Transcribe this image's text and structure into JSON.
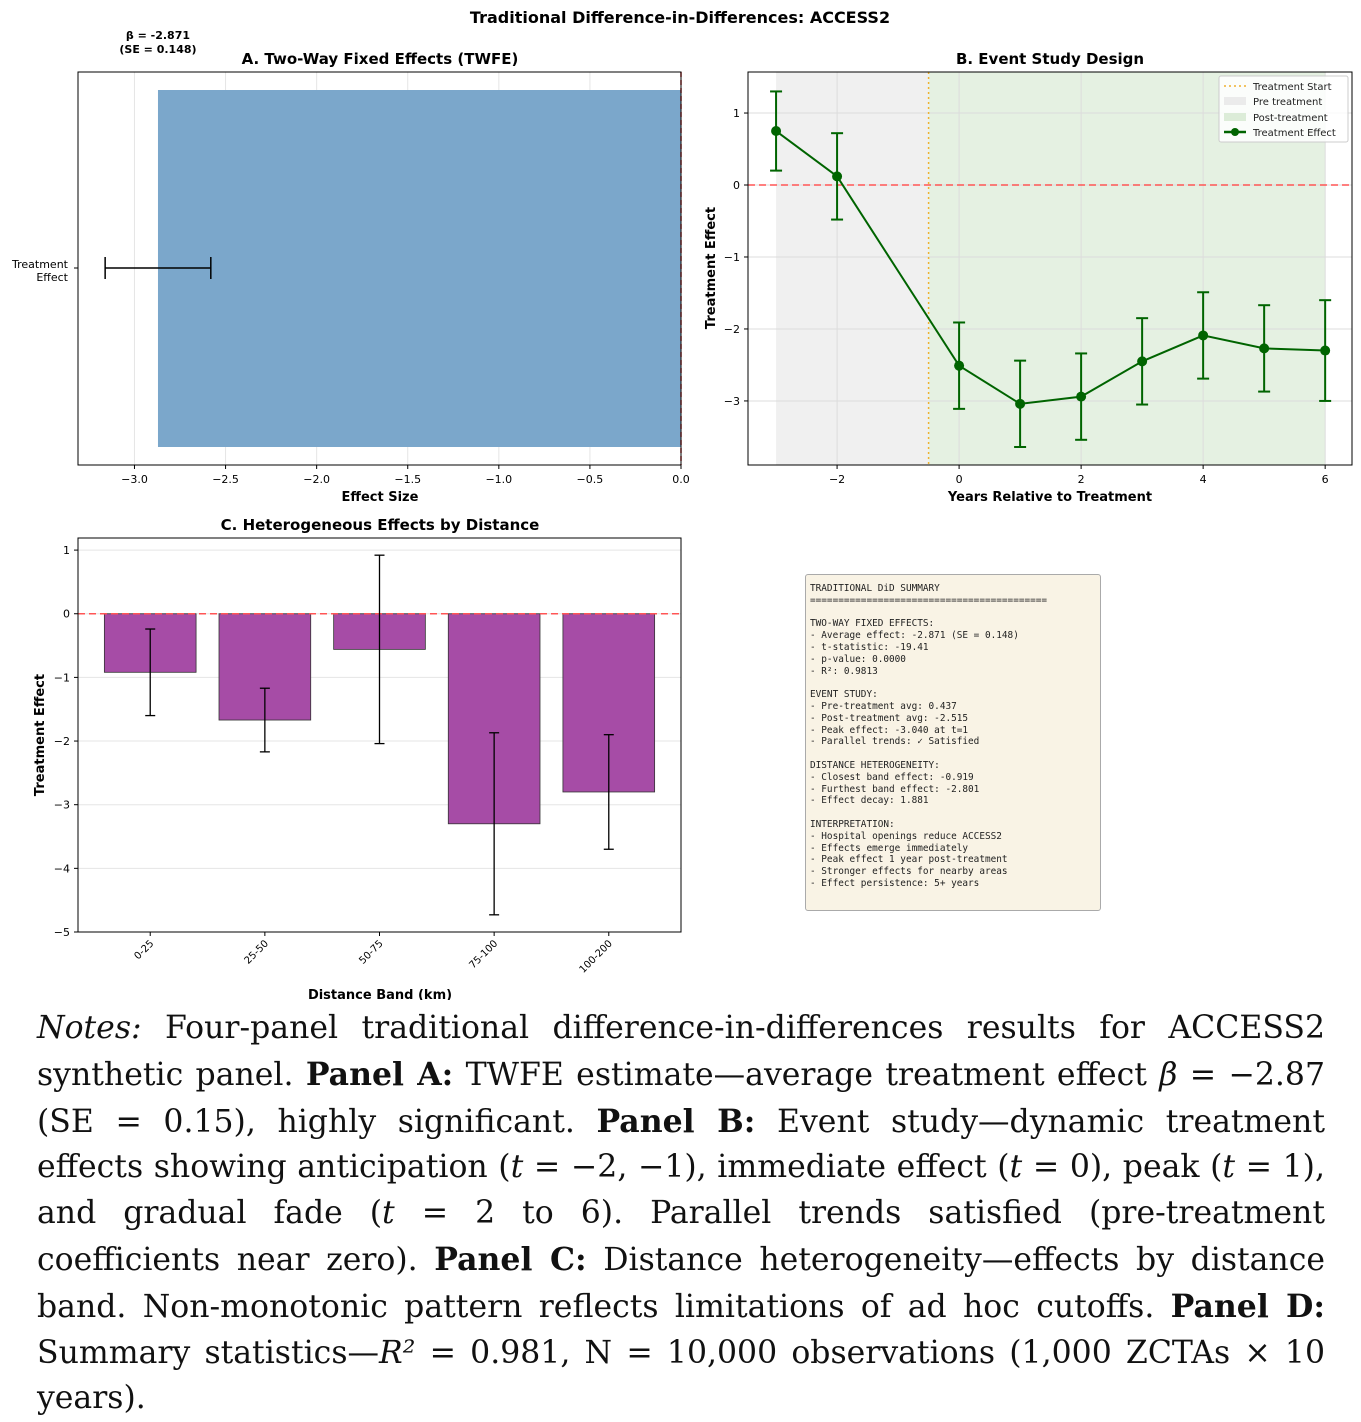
{
  "figure": {
    "suptitle": "Traditional Difference-in-Differences: ACCESS2"
  },
  "chart_data": [
    {
      "panel": "A",
      "type": "bar",
      "orientation": "horizontal",
      "title": "A. Two-Way Fixed Effects (TWFE)",
      "xlabel": "Effect Size",
      "categories": [
        "Treatment\nEffect"
      ],
      "values": [
        -2.871
      ],
      "errors": [
        0.29
      ],
      "xlim": [
        -3.31,
        0.0
      ],
      "xticks": [
        "−3.0",
        "−2.5",
        "−2.0",
        "−1.5",
        "−1.0",
        "−0.5",
        "0.0"
      ],
      "xtick_values": [
        -3,
        -2.5,
        -2,
        -1.5,
        -1,
        -0.5,
        0
      ],
      "annotation": [
        "β = -2.871",
        "(SE = 0.148)"
      ],
      "reference_line": 0,
      "bar_color": "#7ba7cb",
      "grid": true
    },
    {
      "panel": "B",
      "type": "line",
      "title": "B. Event Study Design",
      "xlabel": "Years Relative to Treatment",
      "ylabel": "Treatment Effect",
      "x": [
        -3,
        -2,
        0,
        1,
        2,
        3,
        4,
        5,
        6
      ],
      "y": [
        0.75,
        0.12,
        -2.51,
        -3.04,
        -2.94,
        -2.45,
        -2.09,
        -2.27,
        -2.3
      ],
      "ci_low": [
        0.2,
        -0.48,
        -3.11,
        -3.64,
        -3.54,
        -3.05,
        -2.69,
        -2.87,
        -3.0
      ],
      "ci_high": [
        1.3,
        0.72,
        -1.91,
        -2.44,
        -2.34,
        -1.85,
        -1.49,
        -1.67,
        -1.6
      ],
      "xlim": [
        -3.46,
        6.44
      ],
      "ylim": [
        -3.89,
        1.57
      ],
      "xticks": [
        -2,
        0,
        2,
        4,
        6
      ],
      "yticks": [
        1,
        0,
        -1,
        -2,
        -3
      ],
      "treatment_start": -0.5,
      "pre_region": [
        -3,
        -0.5
      ],
      "post_region": [
        -0.5,
        6
      ],
      "reference_line": 0,
      "legend": [
        "Treatment Start",
        "Pre treatment",
        "Post-treatment",
        "Treatment Effect"
      ],
      "legend_placement": "upper right",
      "line_color": "#006400",
      "grid": true
    },
    {
      "panel": "C",
      "type": "bar",
      "title": "C. Heterogeneous Effects by Distance",
      "xlabel": "Distance Band (km)",
      "ylabel": "Treatment Effect",
      "categories": [
        "0-25",
        "25-50",
        "50-75",
        "75-100",
        "100-200"
      ],
      "values": [
        -0.92,
        -1.67,
        -0.56,
        -3.3,
        -2.8
      ],
      "errors": [
        0.68,
        0.5,
        1.48,
        1.43,
        0.9
      ],
      "ylim": [
        -5,
        1.19
      ],
      "yticks": [
        1,
        0,
        -1,
        -2,
        -3,
        -4,
        -5
      ],
      "reference_line": 0,
      "bar_color": "#a64ca6",
      "grid": true
    }
  ],
  "summary": {
    "lines": [
      "TRADITIONAL DiD SUMMARY",
      "==========================================",
      "",
      "TWO-WAY FIXED EFFECTS:",
      "- Average effect: -2.871 (SE = 0.148)",
      "- t-statistic: -19.41",
      "- p-value: 0.0000",
      "- R²: 0.9813",
      "",
      "EVENT STUDY:",
      "- Pre-treatment avg: 0.437",
      "- Post-treatment avg: -2.515",
      "- Peak effect: -3.040 at t=1",
      "- Parallel trends: ✓ Satisfied",
      "",
      "DISTANCE HETEROGENEITY:",
      "- Closest band effect: -0.919",
      "- Furthest band effect: -2.801",
      "- Effect decay: 1.881",
      "",
      "INTERPRETATION:",
      "- Hospital openings reduce ACCESS2",
      "- Effects emerge immediately",
      "- Peak effect 1 year post-treatment",
      "- Stronger effects for nearby areas",
      "- Effect persistence: 5+ years"
    ]
  },
  "notes": [
    {
      "t": "Notes:",
      "s": "i"
    },
    {
      "t": " Four-panel traditional difference-in-differences results for ACCESS2 synthetic panel. "
    },
    {
      "t": "Panel A:",
      "s": "b"
    },
    {
      "t": " TWFE estimate—average treatment effect "
    },
    {
      "t": "β",
      "s": "i"
    },
    {
      "t": " = −2.87 (SE = 0.15), highly significant. "
    },
    {
      "t": "Panel B:",
      "s": "b"
    },
    {
      "t": " Event study—dynamic treatment effects showing anticipation ("
    },
    {
      "t": "t",
      "s": "i"
    },
    {
      "t": " = −2, −1), immediate effect ("
    },
    {
      "t": "t",
      "s": "i"
    },
    {
      "t": " = 0), peak ("
    },
    {
      "t": "t",
      "s": "i"
    },
    {
      "t": " = 1), and gradual fade ("
    },
    {
      "t": "t",
      "s": "i"
    },
    {
      "t": " = 2 to 6). Parallel trends satisfied (pre-treatment coefficients near zero). "
    },
    {
      "t": "Panel C:",
      "s": "b"
    },
    {
      "t": " Distance heterogeneity—effects by distance band. Non-monotonic pattern reflects limitations of ad hoc cutoffs. "
    },
    {
      "t": "Panel D:",
      "s": "b"
    },
    {
      "t": " Summary statistics—"
    },
    {
      "t": "R²",
      "s": "i"
    },
    {
      "t": " = 0.981, N = 10,000 observations (1,000 ZCTAs × 10 years)."
    }
  ]
}
